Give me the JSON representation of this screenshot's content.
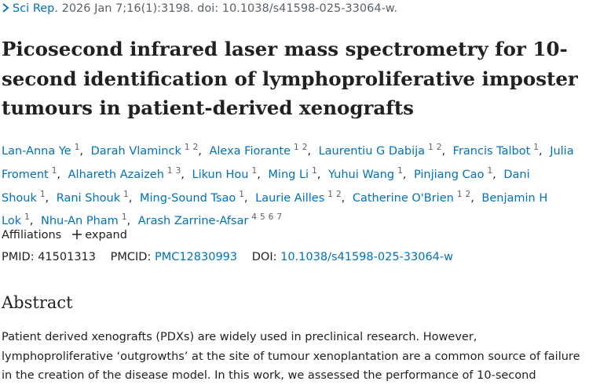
{
  "citation": {
    "journal": "Sci Rep.",
    "details": "2026 Jan 7;16(1):3198. doi: 10.1038/s41598-025-33064-w."
  },
  "title": "Picosecond infrared laser mass spectrometry for 10-second identification of lymphoproliferative imposter tumours in patient-derived xenografts",
  "authors": [
    {
      "name": "Lan-Anna Ye",
      "affiliations": [
        "1"
      ]
    },
    {
      "name": "Darah Vlaminck",
      "affiliations": [
        "1",
        "2"
      ]
    },
    {
      "name": "Alexa Fiorante",
      "affiliations": [
        "1",
        "2"
      ]
    },
    {
      "name": "Laurentiu G Dabija",
      "affiliations": [
        "1",
        "2"
      ]
    },
    {
      "name": "Francis Talbot",
      "affiliations": [
        "1"
      ]
    },
    {
      "name": "Julia Froment",
      "affiliations": [
        "1"
      ]
    },
    {
      "name": "Alhareth Azaizeh",
      "affiliations": [
        "1",
        "3"
      ]
    },
    {
      "name": "Likun Hou",
      "affiliations": [
        "1"
      ]
    },
    {
      "name": "Ming Li",
      "affiliations": [
        "1"
      ]
    },
    {
      "name": "Yuhui Wang",
      "affiliations": [
        "1"
      ]
    },
    {
      "name": "Pinjiang Cao",
      "affiliations": [
        "1"
      ]
    },
    {
      "name": "Dani Shouk",
      "affiliations": [
        "1"
      ]
    },
    {
      "name": "Rani Shouk",
      "affiliations": [
        "1"
      ]
    },
    {
      "name": "Ming-Sound Tsao",
      "affiliations": [
        "1"
      ]
    },
    {
      "name": "Laurie Ailles",
      "affiliations": [
        "1",
        "2"
      ]
    },
    {
      "name": "Catherine O'Brien",
      "affiliations": [
        "1",
        "2"
      ]
    },
    {
      "name": "Benjamin H Lok",
      "affiliations": [
        "1"
      ]
    },
    {
      "name": "Nhu-An Pham",
      "affiliations": [
        "1"
      ]
    },
    {
      "name": "Arash Zarrine-Afsar",
      "affiliations": [
        "4",
        "5",
        "6",
        "7"
      ]
    }
  ],
  "affiliations": {
    "label": "Affiliations",
    "expand": "expand"
  },
  "identifiers": {
    "pmid": {
      "label": "PMID:",
      "value": "41501313"
    },
    "pmcid": {
      "label": "PMCID:",
      "value": "PMC12830993"
    },
    "doi": {
      "label": "DOI:",
      "value": "10.1038/s41598-025-33064-w"
    }
  },
  "abstract": {
    "heading": "Abstract",
    "text": "Patient derived xenografts (PDXs) are widely used in preclinical research. However, lymphoproliferative ‘outgrowths’ at the site of tumour xenoplantation are a common source of failure in the creation of the disease model. In this work, we assessed the performance of 10-second"
  }
}
